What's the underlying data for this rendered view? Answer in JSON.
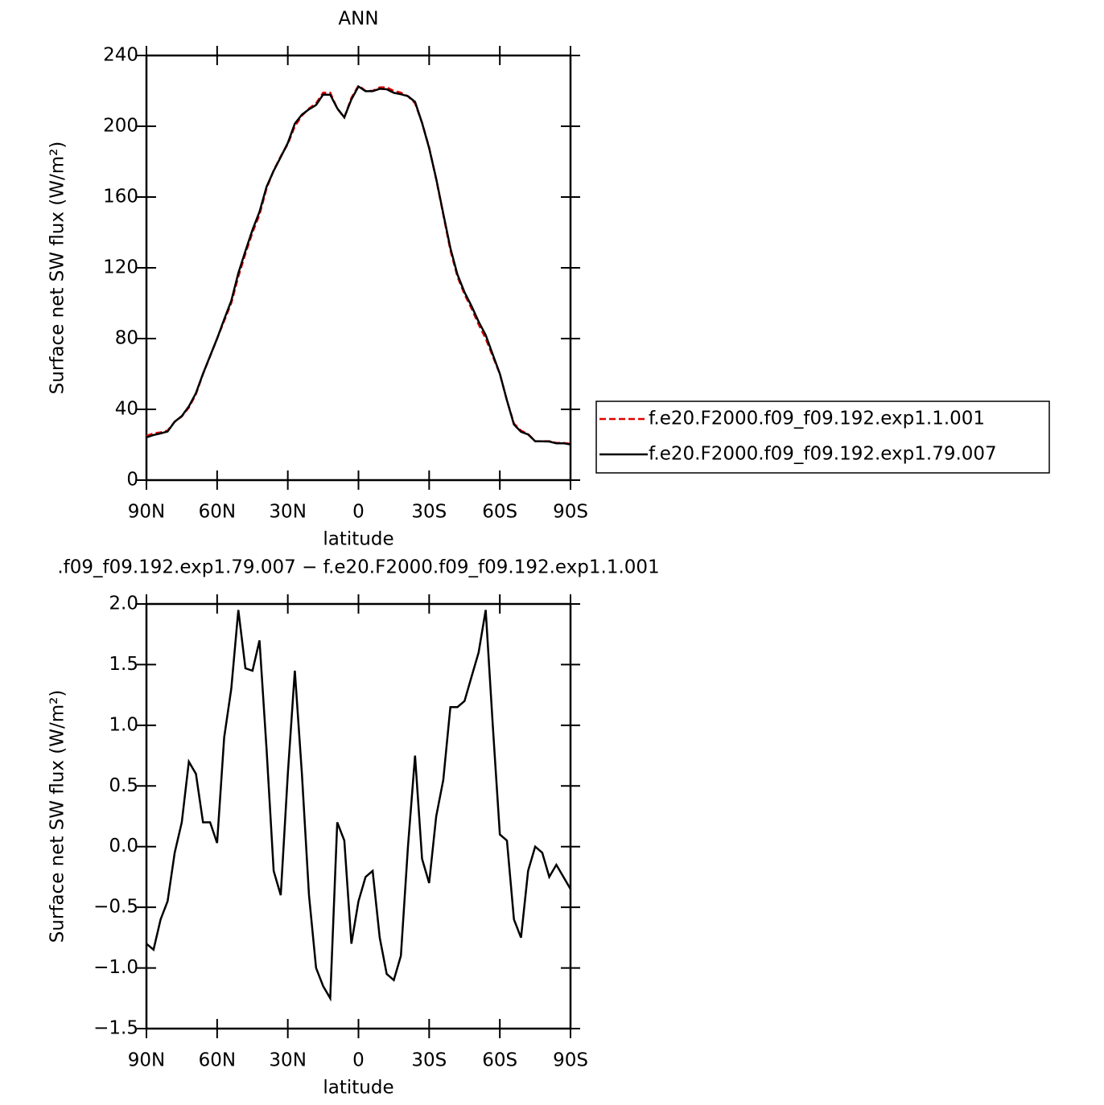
{
  "chart_data": [
    {
      "type": "line",
      "title": "ANN",
      "xlabel": "latitude",
      "ylabel": "Surface net SW flux (W/m²)",
      "x": [
        90,
        87,
        84,
        81,
        78,
        75,
        72,
        69,
        66,
        63,
        60,
        57,
        54,
        51,
        48,
        45,
        42,
        39,
        36,
        33,
        30,
        27,
        24,
        21,
        18,
        15,
        12,
        9,
        6,
        3,
        0,
        -3,
        -6,
        -9,
        -12,
        -15,
        -18,
        -21,
        -24,
        -27,
        -30,
        -33,
        -36,
        -39,
        -42,
        -45,
        -48,
        -51,
        -54,
        -57,
        -60,
        -63,
        -66,
        -69,
        -72,
        -75,
        -78,
        -81,
        -84,
        -87,
        -90
      ],
      "series": [
        {
          "name": "f.e20.F2000.f09_f09.192.exp1.1.001",
          "color": "#e00000",
          "style": "dashed",
          "values": [
            25,
            26.4,
            27,
            28,
            33,
            36,
            41,
            48.6,
            60,
            70,
            80,
            90,
            100,
            115,
            128,
            140,
            150,
            165,
            175,
            183,
            190,
            200,
            206,
            210,
            213,
            219,
            219,
            210,
            205,
            216,
            223,
            220,
            220,
            222,
            222,
            220,
            219,
            217,
            213,
            202,
            188,
            170,
            150,
            130,
            115,
            105,
            97,
            88,
            80,
            70,
            60,
            45,
            32,
            28,
            26,
            22,
            22,
            22,
            21,
            21,
            20.5
          ]
        },
        {
          "name": "f.e20.F2000.f09_f09.192.exp1.79.007",
          "color": "#000000",
          "style": "solid",
          "values": [
            24.2,
            25.5,
            26.4,
            27.5,
            33,
            36.2,
            41.7,
            49.2,
            60.2,
            70.2,
            80,
            90.9,
            101.3,
            117,
            129.5,
            141.5,
            151.7,
            165.8,
            174.8,
            182.6,
            190.6,
            201.5,
            206.6,
            209.6,
            212,
            217.9,
            217.8,
            210.2,
            205,
            215.2,
            222.5,
            219.8,
            219.8,
            221.2,
            220.9,
            218.9,
            218.1,
            217,
            213.8,
            201.9,
            187.7,
            170.3,
            150.6,
            131.2,
            116.2,
            106.2,
            98.4,
            89.6,
            82,
            71,
            60.1,
            45.1,
            31.4,
            27.3,
            25.8,
            22,
            21.9,
            21.8,
            20.8,
            20.8,
            20.2
          ]
        }
      ],
      "xlim": [
        90,
        -90
      ],
      "ylim": [
        0,
        240
      ],
      "xticks": [
        {
          "value": 90,
          "label": "90N"
        },
        {
          "value": 60,
          "label": "60N"
        },
        {
          "value": 30,
          "label": "30N"
        },
        0,
        {
          "value": -30,
          "label": "30S"
        },
        {
          "value": -60,
          "label": "60S"
        },
        {
          "value": -90,
          "label": "90S"
        }
      ],
      "yticks": [
        0,
        40,
        80,
        120,
        160,
        200,
        240
      ],
      "legend": "right"
    },
    {
      "type": "line",
      "title": ".f09_f09.192.exp1.79.007 − f.e20.F2000.f09_f09.192.exp1.1.001",
      "xlabel": "latitude",
      "ylabel": "Surface net SW flux (W/m²)",
      "x": [
        90,
        87,
        84,
        81,
        78,
        75,
        72,
        69,
        66,
        63,
        60,
        57,
        54,
        51,
        48,
        45,
        42,
        39,
        36,
        33,
        30,
        27,
        24,
        21,
        18,
        15,
        12,
        9,
        6,
        3,
        0,
        -3,
        -6,
        -9,
        -12,
        -15,
        -18,
        -21,
        -24,
        -27,
        -30,
        -33,
        -36,
        -39,
        -42,
        -45,
        -48,
        -51,
        -54,
        -57,
        -60,
        -63,
        -66,
        -69,
        -72,
        -75,
        -78,
        -81,
        -84,
        -87,
        -90
      ],
      "values": [
        -0.8,
        -0.85,
        -0.6,
        -0.45,
        -0.05,
        0.2,
        0.7,
        0.6,
        0.2,
        0.2,
        0.03,
        0.9,
        1.3,
        1.95,
        1.47,
        1.45,
        1.7,
        0.8,
        -0.2,
        -0.4,
        0.6,
        1.45,
        0.6,
        -0.4,
        -1.0,
        -1.15,
        -1.25,
        0.2,
        0.05,
        -0.8,
        -0.45,
        -0.25,
        -0.2,
        -0.75,
        -1.05,
        -1.1,
        -0.9,
        0.0,
        0.75,
        -0.1,
        -0.3,
        0.25,
        0.55,
        1.15,
        1.15,
        1.2,
        1.4,
        1.6,
        1.95,
        1.0,
        0.1,
        0.05,
        -0.6,
        -0.75,
        -0.2,
        0.0,
        -0.05,
        -0.25,
        -0.15,
        -0.25,
        -0.35
      ],
      "color": "#000000",
      "style": "solid",
      "xlim": [
        90,
        -90
      ],
      "ylim": [
        -1.5,
        2.0
      ],
      "xticks": [
        {
          "value": 90,
          "label": "90N"
        },
        {
          "value": 60,
          "label": "60N"
        },
        {
          "value": 30,
          "label": "30N"
        },
        0,
        {
          "value": -30,
          "label": "30S"
        },
        {
          "value": -60,
          "label": "60S"
        },
        {
          "value": -90,
          "label": "90S"
        }
      ],
      "yticks": [
        {
          "value": -1.5,
          "label": "−1.5"
        },
        {
          "value": -1.0,
          "label": "−1.0"
        },
        {
          "value": -0.5,
          "label": "−0.5"
        },
        {
          "value": 0.0,
          "label": "0.0"
        },
        0.5,
        {
          "value": 1.0,
          "label": "1.0"
        },
        1.5,
        {
          "value": 2.0,
          "label": "2.0"
        }
      ]
    }
  ]
}
